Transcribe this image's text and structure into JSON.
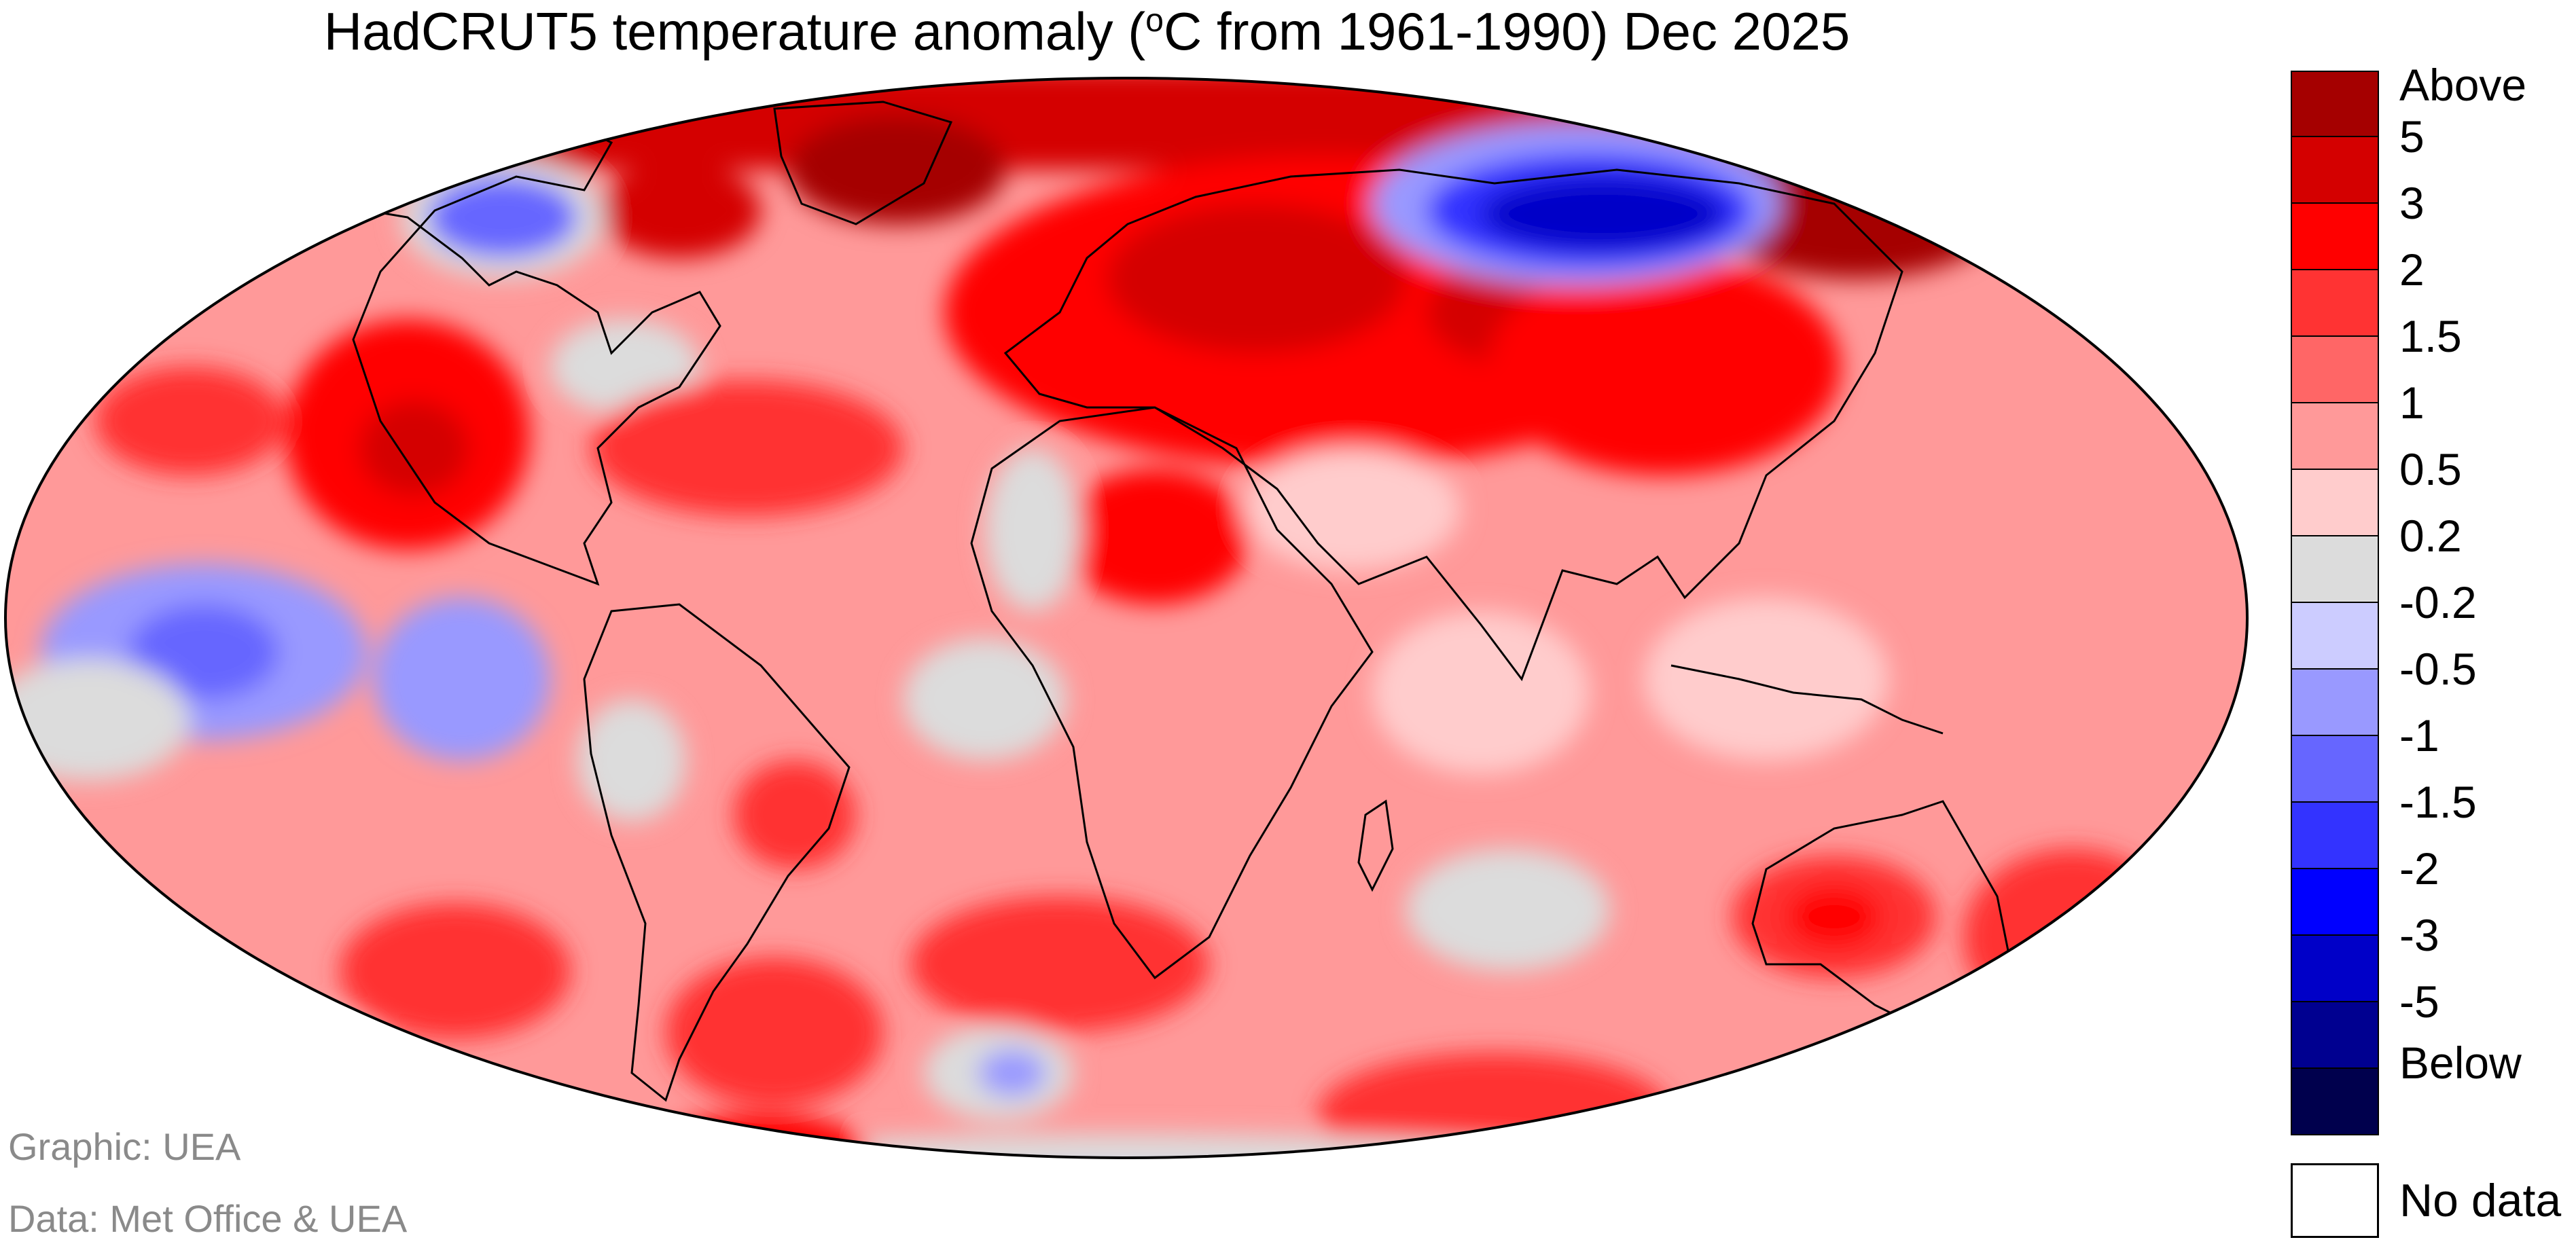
{
  "title": {
    "prefix": "HadCRUT5 temperature anomaly (",
    "degree": "o",
    "suffix": "C from 1961-1990) Dec 2025"
  },
  "colors": {
    "above": "#a50000",
    "c5": "#d40000",
    "c3": "#ff0000",
    "c2": "#ff3333",
    "c15": "#ff6666",
    "c1": "#ff9999",
    "c05": "#ffcccc",
    "c02": "#dcdcdc",
    "cm02": "#ccccff",
    "cm05": "#9999ff",
    "cm1": "#6666ff",
    "cm15": "#3333ff",
    "cm2": "#0000ff",
    "cm3": "#0000c8",
    "cm5": "#000090",
    "below": "#00004d",
    "nodata": "#ffffff"
  },
  "legend": {
    "labels": [
      "Above",
      "5",
      "3",
      "2",
      "1.5",
      "1",
      "0.5",
      "0.2",
      "-0.2",
      "-0.5",
      "-1",
      "-1.5",
      "-2",
      "-3",
      "-5",
      "Below"
    ],
    "no_data": "No data"
  },
  "credits": {
    "graphic": "Graphic: UEA",
    "data": "Data: Met Office & UEA"
  }
}
